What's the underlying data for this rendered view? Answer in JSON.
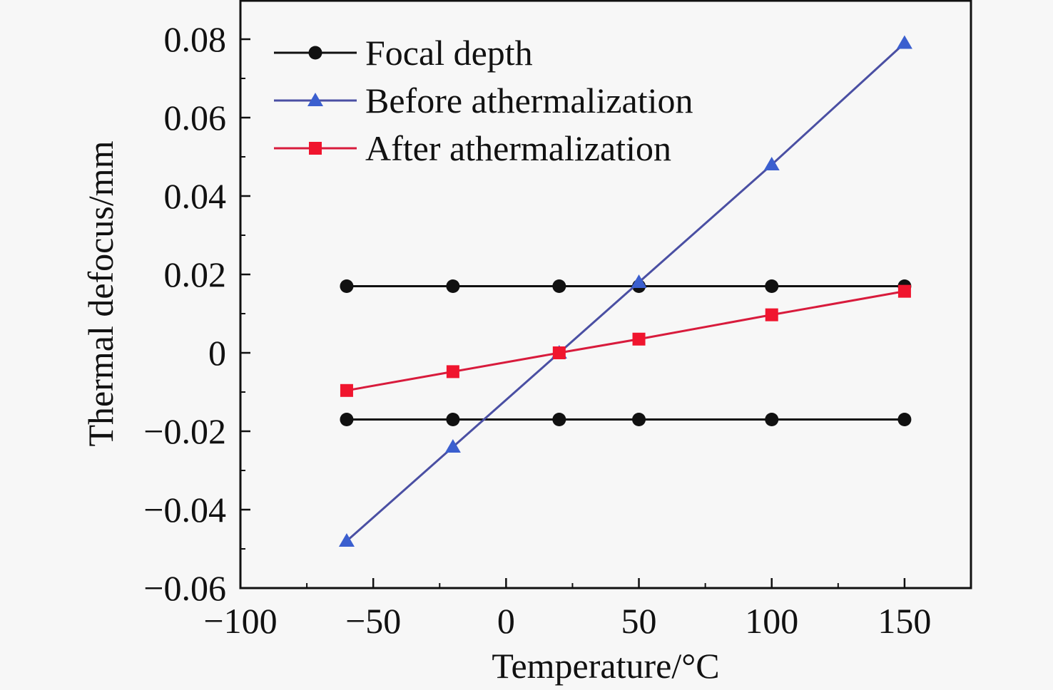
{
  "chart_data": {
    "type": "line",
    "title": "",
    "xlabel": "Temperature/°C",
    "ylabel": "Thermal defocus/mm",
    "xlim": [
      -100,
      175
    ],
    "ylim": [
      -0.06,
      0.09
    ],
    "xticks": [
      -100,
      -50,
      0,
      50,
      100,
      150
    ],
    "xtick_labels": [
      "−100",
      "−50",
      "0",
      "50",
      "100",
      "150"
    ],
    "yticks": [
      -0.06,
      -0.04,
      -0.02,
      0,
      0.02,
      0.04,
      0.06,
      0.08
    ],
    "ytick_labels": [
      "−0.06",
      "−0.04",
      "−0.02",
      "0",
      "0.02",
      "0.04",
      "0.06",
      "0.08"
    ],
    "grid": false,
    "legend_position": "top-left",
    "x": [
      -60,
      -20,
      20,
      50,
      100,
      150
    ],
    "series": [
      {
        "name": "Focal depth",
        "marker": "circle",
        "color": "#111111",
        "values": [
          0.017,
          0.017,
          0.017,
          0.017,
          0.017,
          0.017
        ]
      },
      {
        "name": "Focal depth (lower bound)",
        "legend": false,
        "marker": "circle",
        "color": "#111111",
        "values": [
          -0.017,
          -0.017,
          -0.017,
          -0.017,
          -0.017,
          -0.017
        ]
      },
      {
        "name": "Before athermalization",
        "marker": "triangle",
        "color": "#4a4fa3",
        "marker_color": "#3b5fcf",
        "values": [
          -0.048,
          -0.024,
          0.0,
          0.018,
          0.048,
          0.079
        ]
      },
      {
        "name": "After athermalization",
        "marker": "square",
        "color": "#d81b3c",
        "marker_color": "#f0152e",
        "values": [
          -0.0096,
          -0.0048,
          0.0,
          0.0035,
          0.0097,
          0.0157
        ]
      }
    ]
  }
}
